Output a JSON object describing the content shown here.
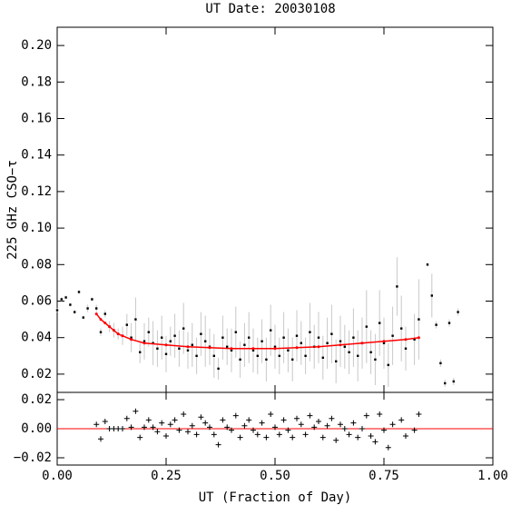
{
  "chart_data": [
    {
      "type": "errorbar-scatter",
      "title": "UT Date: 20030108",
      "y_label": "225 GHz CSO−τ",
      "xlim": [
        0,
        1
      ],
      "xticks": [
        0,
        0.25,
        0.5,
        0.75,
        1
      ],
      "ylim": [
        0.01,
        0.21
      ],
      "yticks": [
        {
          "value": 0.02,
          "label": "0.02"
        },
        {
          "value": 0.04,
          "label": "0.04"
        },
        {
          "value": 0.06,
          "label": "0.06"
        },
        {
          "value": 0.08,
          "label": "0.08"
        },
        {
          "value": 0.1,
          "label": "0.10"
        },
        {
          "value": 0.12,
          "label": "0.12"
        },
        {
          "value": 0.14,
          "label": "0.14"
        },
        {
          "value": 0.16,
          "label": "0.16"
        },
        {
          "value": 0.18,
          "label": "0.18"
        },
        {
          "value": 0.2,
          "label": "0.20"
        }
      ],
      "point_color": "#000000",
      "error_color": "#c8c8c8",
      "x": [
        0,
        0.01,
        0.02,
        0.03,
        0.04,
        0.05,
        0.06,
        0.07,
        0.08,
        0.09,
        0.1,
        0.11,
        0.12,
        0.13,
        0.14,
        0.15,
        0.16,
        0.17,
        0.18,
        0.19,
        0.2,
        0.21,
        0.22,
        0.23,
        0.24,
        0.25,
        0.26,
        0.27,
        0.28,
        0.29,
        0.3,
        0.31,
        0.32,
        0.33,
        0.34,
        0.35,
        0.36,
        0.37,
        0.38,
        0.39,
        0.4,
        0.41,
        0.42,
        0.43,
        0.44,
        0.45,
        0.46,
        0.47,
        0.48,
        0.49,
        0.5,
        0.51,
        0.52,
        0.53,
        0.54,
        0.55,
        0.56,
        0.57,
        0.58,
        0.59,
        0.6,
        0.61,
        0.62,
        0.63,
        0.64,
        0.65,
        0.66,
        0.67,
        0.68,
        0.69,
        0.7,
        0.71,
        0.72,
        0.73,
        0.74,
        0.75,
        0.76,
        0.77,
        0.78,
        0.79,
        0.8,
        0.82,
        0.83,
        0.85,
        0.86,
        0.87,
        0.88,
        0.89,
        0.9,
        0.91,
        0.92
      ],
      "values": [
        0.055,
        0.061,
        0.062,
        0.058,
        0.054,
        0.065,
        0.051,
        0.056,
        0.061,
        0.056,
        0.043,
        0.053,
        0.046,
        0.044,
        0.042,
        0.041,
        0.047,
        0.04,
        0.05,
        0.032,
        0.038,
        0.043,
        0.037,
        0.034,
        0.04,
        0.031,
        0.038,
        0.041,
        0.034,
        0.045,
        0.033,
        0.036,
        0.03,
        0.042,
        0.038,
        0.035,
        0.03,
        0.023,
        0.04,
        0.035,
        0.033,
        0.043,
        0.028,
        0.036,
        0.04,
        0.033,
        0.03,
        0.038,
        0.028,
        0.044,
        0.035,
        0.03,
        0.04,
        0.033,
        0.028,
        0.041,
        0.037,
        0.03,
        0.043,
        0.035,
        0.04,
        0.029,
        0.037,
        0.042,
        0.027,
        0.038,
        0.035,
        0.032,
        0.04,
        0.03,
        0.037,
        0.046,
        0.032,
        0.028,
        0.048,
        0.037,
        0.025,
        0.041,
        0.068,
        0.045,
        0.034,
        0.039,
        0.05,
        0.08,
        0.063,
        0.047,
        0.026,
        0.015,
        0.048,
        0.016,
        0.054
      ],
      "errors": [
        0.001,
        0.001,
        0.001,
        0.001,
        0.001,
        0.001,
        0.001,
        0.002,
        0.001,
        0.002,
        0.002,
        0.002,
        0.003,
        0.004,
        0.003,
        0.005,
        0.006,
        0.008,
        0.012,
        0.006,
        0.01,
        0.008,
        0.012,
        0.01,
        0.012,
        0.01,
        0.008,
        0.012,
        0.01,
        0.014,
        0.01,
        0.012,
        0.01,
        0.012,
        0.014,
        0.01,
        0.012,
        0.006,
        0.012,
        0.01,
        0.012,
        0.014,
        0.01,
        0.012,
        0.014,
        0.012,
        0.01,
        0.012,
        0.012,
        0.014,
        0.012,
        0.01,
        0.014,
        0.012,
        0.012,
        0.014,
        0.012,
        0.01,
        0.016,
        0.012,
        0.014,
        0.012,
        0.014,
        0.016,
        0.012,
        0.014,
        0.012,
        0.012,
        0.016,
        0.014,
        0.014,
        0.02,
        0.012,
        0.014,
        0.018,
        0.014,
        0.012,
        0.016,
        0.016,
        0.018,
        0.012,
        0.014,
        0.022,
        0.001,
        0.012,
        0.002,
        0.002,
        0.002,
        0.002,
        0.002,
        0.002
      ],
      "fit_color": "#ff0000",
      "fit_x": [
        0.09,
        0.1,
        0.11,
        0.12,
        0.13,
        0.14,
        0.15,
        0.17,
        0.2,
        0.25,
        0.3,
        0.35,
        0.4,
        0.45,
        0.5,
        0.55,
        0.6,
        0.65,
        0.7,
        0.75,
        0.8,
        0.83
      ],
      "fit_values": [
        0.053,
        0.05,
        0.048,
        0.046,
        0.044,
        0.042,
        0.041,
        0.039,
        0.037,
        0.036,
        0.035,
        0.0345,
        0.034,
        0.034,
        0.034,
        0.0345,
        0.035,
        0.036,
        0.037,
        0.038,
        0.039,
        0.04
      ]
    },
    {
      "type": "residual",
      "x_label": "UT (Fraction of Day)",
      "xlim": [
        0,
        1
      ],
      "xticks": [
        {
          "value": 0,
          "label": "0.00"
        },
        {
          "value": 0.25,
          "label": "0.25"
        },
        {
          "value": 0.5,
          "label": "0.50"
        },
        {
          "value": 0.75,
          "label": "0.75"
        },
        {
          "value": 1,
          "label": "1.00"
        }
      ],
      "ylim": [
        -0.025,
        0.025
      ],
      "yticks": [
        {
          "value": -0.02,
          "label": "−0.02"
        },
        {
          "value": 0,
          "label": "0.00"
        },
        {
          "value": 0.02,
          "label": "0.02"
        }
      ],
      "reference_line": 0,
      "reference_color": "#ff0000",
      "color": "#000000",
      "x": [
        0.09,
        0.1,
        0.11,
        0.12,
        0.13,
        0.14,
        0.15,
        0.16,
        0.17,
        0.18,
        0.19,
        0.2,
        0.21,
        0.22,
        0.23,
        0.24,
        0.25,
        0.26,
        0.27,
        0.28,
        0.29,
        0.3,
        0.31,
        0.32,
        0.33,
        0.34,
        0.35,
        0.36,
        0.37,
        0.38,
        0.39,
        0.4,
        0.41,
        0.42,
        0.43,
        0.44,
        0.45,
        0.46,
        0.47,
        0.48,
        0.49,
        0.5,
        0.51,
        0.52,
        0.53,
        0.54,
        0.55,
        0.56,
        0.57,
        0.58,
        0.59,
        0.6,
        0.61,
        0.62,
        0.63,
        0.64,
        0.65,
        0.66,
        0.67,
        0.68,
        0.69,
        0.7,
        0.71,
        0.72,
        0.73,
        0.74,
        0.75,
        0.76,
        0.77,
        0.79,
        0.8,
        0.82,
        0.83
      ],
      "values": [
        0.003,
        -0.007,
        0.005,
        0,
        0,
        0,
        0,
        0.007,
        0.001,
        0.012,
        -0.006,
        0.001,
        0.006,
        0.001,
        -0.002,
        0.004,
        -0.005,
        0.003,
        0.006,
        -0.001,
        0.01,
        -0.002,
        0.002,
        -0.004,
        0.008,
        0.004,
        0.001,
        -0.004,
        -0.011,
        0.006,
        0.001,
        -0.001,
        0.009,
        -0.006,
        0.002,
        0.006,
        -0.001,
        -0.004,
        0.004,
        -0.006,
        0.01,
        0.001,
        -0.004,
        0.006,
        -0.001,
        -0.006,
        0.007,
        0.003,
        -0.004,
        0.009,
        0.001,
        0.005,
        -0.006,
        0.002,
        0.007,
        -0.008,
        0.003,
        0,
        -0.004,
        0.004,
        -0.006,
        0,
        0.009,
        -0.005,
        -0.009,
        0.01,
        -0.001,
        -0.013,
        0.003,
        0.006,
        -0.005,
        -0.001,
        0.01
      ]
    }
  ]
}
